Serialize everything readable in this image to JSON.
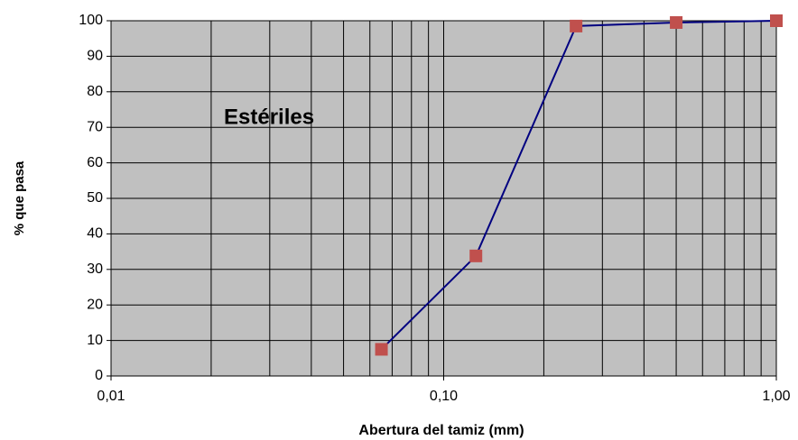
{
  "chart_data": {
    "type": "line",
    "annotation": "Estériles",
    "xlabel": "Abertura del tamiz (mm)",
    "ylabel": "% que pasa",
    "x": [
      0.065,
      0.125,
      0.25,
      0.5,
      1.0
    ],
    "series": [
      {
        "name": "Estériles",
        "color": "#000080",
        "marker_color": "#c0504d",
        "values": [
          7.5,
          33.8,
          98.5,
          99.5,
          100
        ]
      }
    ],
    "xscale": "log",
    "xlim": [
      0.01,
      1
    ],
    "xticks": [
      {
        "value": 0.01,
        "label": "0,01"
      },
      {
        "value": 0.1,
        "label": "0,10"
      },
      {
        "value": 1,
        "label": "1,00"
      }
    ],
    "ylim": [
      0,
      100
    ],
    "yticks": [
      0,
      10,
      20,
      30,
      40,
      50,
      60,
      70,
      80,
      90,
      100
    ],
    "grid": true,
    "background": "#c0c0c0"
  }
}
